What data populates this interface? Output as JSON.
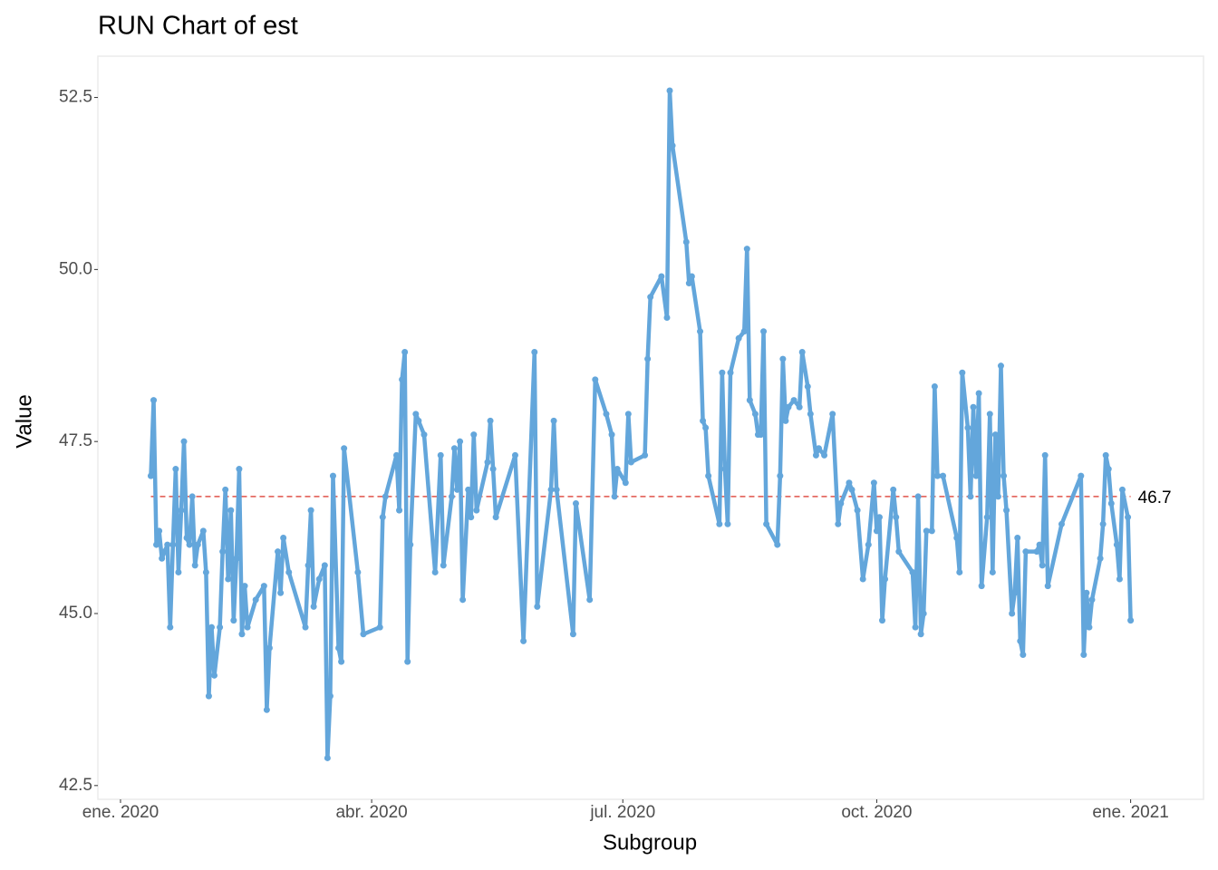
{
  "chart_data": {
    "type": "line",
    "title": "RUN Chart of est",
    "x_label": "Subgroup",
    "y_label": "Value",
    "x": [
      11,
      12,
      13,
      14,
      15,
      16,
      17,
      18,
      19,
      20,
      21,
      22,
      23,
      24,
      25,
      26,
      27,
      28,
      30,
      31,
      32,
      33,
      34,
      36,
      37,
      38,
      39,
      40,
      41,
      42,
      43,
      44,
      45,
      46,
      49,
      52,
      53,
      54,
      57,
      58,
      59,
      61,
      67,
      68,
      69,
      70,
      72,
      74,
      75,
      76,
      77,
      79,
      80,
      81,
      86,
      88,
      94,
      95,
      96,
      100,
      101,
      102,
      103,
      104,
      105,
      107,
      108,
      110,
      114,
      116,
      117,
      120,
      121,
      122,
      123,
      124,
      126,
      127,
      128,
      129,
      133,
      134,
      135,
      136,
      143,
      146,
      150,
      151,
      156,
      157,
      158,
      164,
      165,
      170,
      172,
      176,
      178,
      179,
      180,
      183,
      184,
      185,
      190,
      191,
      192,
      196,
      198,
      199,
      200,
      205,
      206,
      207,
      210,
      211,
      212,
      213,
      217,
      218,
      219,
      220,
      221,
      224,
      226,
      227,
      228,
      230,
      231,
      232,
      233,
      234,
      238,
      239,
      240,
      241,
      242,
      244,
      246,
      247,
      249,
      250,
      252,
      253,
      255,
      258,
      260,
      261,
      264,
      265,
      267,
      269,
      271,
      273,
      274,
      275,
      276,
      277,
      280,
      281,
      282,
      287,
      288,
      289,
      290,
      291,
      292,
      294,
      295,
      296,
      298,
      303,
      304,
      305,
      307,
      308,
      309,
      310,
      311,
      312,
      314,
      315,
      316,
      317,
      318,
      319,
      320,
      321,
      323,
      324,
      325,
      326,
      327,
      328,
      332,
      333,
      334,
      335,
      336,
      341,
      348,
      349,
      350,
      351,
      352,
      355,
      356,
      357,
      358,
      359,
      361,
      362,
      363,
      365,
      366
    ],
    "series": [
      {
        "name": "est",
        "color": "#63a6db",
        "values": [
          47.0,
          48.1,
          46.0,
          46.2,
          45.8,
          45.9,
          46.0,
          44.8,
          46.0,
          47.1,
          45.6,
          46.5,
          47.5,
          46.1,
          46.0,
          46.7,
          45.7,
          46.0,
          46.2,
          45.6,
          43.8,
          44.8,
          44.1,
          44.8,
          45.9,
          46.8,
          45.5,
          46.5,
          44.9,
          45.8,
          47.1,
          44.7,
          45.4,
          44.8,
          45.2,
          45.4,
          43.6,
          44.5,
          45.9,
          45.3,
          46.1,
          45.6,
          44.8,
          45.7,
          46.5,
          45.1,
          45.5,
          45.7,
          42.9,
          43.8,
          47.0,
          44.5,
          44.3,
          47.4,
          45.6,
          44.7,
          44.8,
          46.4,
          46.7,
          47.3,
          46.5,
          48.4,
          48.8,
          44.3,
          46.0,
          47.9,
          47.8,
          47.6,
          45.6,
          47.3,
          45.7,
          46.7,
          47.4,
          46.8,
          47.5,
          45.2,
          46.8,
          46.4,
          47.6,
          46.5,
          47.2,
          47.8,
          47.1,
          46.4,
          47.3,
          44.6,
          48.8,
          45.1,
          46.8,
          47.8,
          46.8,
          44.7,
          46.6,
          45.2,
          48.4,
          47.9,
          47.6,
          46.7,
          47.1,
          46.9,
          47.9,
          47.2,
          47.3,
          48.7,
          49.6,
          49.9,
          49.3,
          52.6,
          51.8,
          50.4,
          49.8,
          49.9,
          49.1,
          47.8,
          47.7,
          47.0,
          46.3,
          48.5,
          47.1,
          46.3,
          48.5,
          49.0,
          49.1,
          50.3,
          48.1,
          47.9,
          47.6,
          47.6,
          49.1,
          46.3,
          46.0,
          47.0,
          48.7,
          47.8,
          48.0,
          48.1,
          48.0,
          48.8,
          48.3,
          47.9,
          47.3,
          47.4,
          47.3,
          47.9,
          46.3,
          46.6,
          46.9,
          46.8,
          46.5,
          45.5,
          46.0,
          46.9,
          46.2,
          46.4,
          44.9,
          45.5,
          46.8,
          46.4,
          45.9,
          45.6,
          44.8,
          46.7,
          44.7,
          45.0,
          46.2,
          46.2,
          48.3,
          47.0,
          47.0,
          46.1,
          45.6,
          48.5,
          47.7,
          46.7,
          48.0,
          47.0,
          48.2,
          45.4,
          46.4,
          47.9,
          45.6,
          47.6,
          46.7,
          48.6,
          47.0,
          46.5,
          45.0,
          45.3,
          46.1,
          44.6,
          44.4,
          45.9,
          45.9,
          46.0,
          45.7,
          47.3,
          45.4,
          46.3,
          47.0,
          44.4,
          45.3,
          44.8,
          45.2,
          45.8,
          46.3,
          47.3,
          47.1,
          46.6,
          46.0,
          45.5,
          46.8,
          46.4,
          44.9
        ]
      }
    ],
    "center_line": 46.7,
    "center_line_color": "#e0534a",
    "xlim": [
      -8.2,
      392.4
    ],
    "xticks": [
      {
        "value": 0,
        "label": "ene. 2020"
      },
      {
        "value": 91,
        "label": "abr. 2020"
      },
      {
        "value": 182,
        "label": "jul. 2020"
      },
      {
        "value": 274,
        "label": "oct. 2020"
      },
      {
        "value": 366,
        "label": "ene. 2021"
      }
    ],
    "ylim": [
      42.3,
      53.1
    ],
    "yticks": [
      {
        "value": 42.5,
        "label": "42.5"
      },
      {
        "value": 45,
        "label": "45.0"
      },
      {
        "value": 47.5,
        "label": "47.5"
      },
      {
        "value": 50,
        "label": "50.0"
      },
      {
        "value": 52.5,
        "label": "52.5"
      }
    ],
    "grid": false
  }
}
